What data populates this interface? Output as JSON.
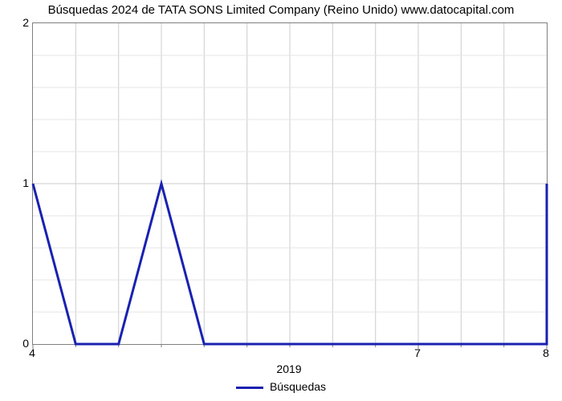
{
  "chart": {
    "type": "line",
    "title": "Búsquedas 2024 de TATA SONS Limited Company (Reino Unido) www.datocapital.com",
    "title_fontsize": 15,
    "background_color": "#ffffff",
    "border_color": "#7f7f7f",
    "grid_color": "#cccccc",
    "grid_minor_color": "#e5e5e5",
    "line_color": "#1921b0",
    "line_width": 3,
    "x_range": [
      4,
      8
    ],
    "y_range": [
      0,
      2
    ],
    "y_ticks": [
      0,
      1,
      2
    ],
    "y_minor_per_major": 5,
    "x_ticks": [
      {
        "value": 4,
        "label": "4"
      },
      {
        "value": 7,
        "label": "7"
      },
      {
        "value": 8,
        "label": "8"
      }
    ],
    "x_minor_ticks": [
      4.333,
      4.667,
      5,
      5.333,
      5.667,
      6,
      6.333,
      6.667,
      7.333,
      7.667
    ],
    "x_vert_gridlines": [
      4.333,
      4.667,
      5,
      5.333,
      5.667,
      6,
      6.333,
      6.667,
      7,
      7.333,
      7.667
    ],
    "x_sublabel": {
      "value": 6,
      "label": "2019"
    },
    "series": {
      "label": "Búsquedas",
      "points": [
        [
          4,
          1
        ],
        [
          4.333,
          0
        ],
        [
          4.667,
          0
        ],
        [
          5,
          1
        ],
        [
          5.333,
          0
        ],
        [
          5.5,
          0
        ],
        [
          8,
          0
        ],
        [
          8,
          1
        ]
      ]
    }
  }
}
